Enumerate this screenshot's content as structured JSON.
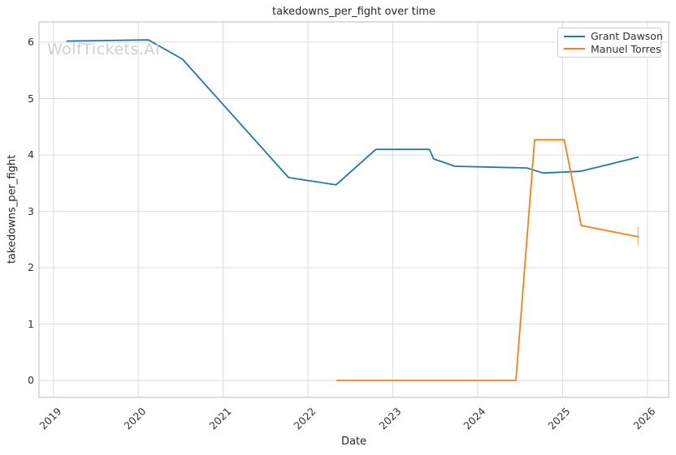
{
  "watermark": {
    "text": "WolfTickets.AI",
    "color": "#d0d0d0"
  },
  "style": {
    "background": "#ffffff",
    "grid_color": "#dcdcdc",
    "spine_color": "#c8c8c8",
    "text_color": "#262626",
    "tick_color": "#333333"
  },
  "chart_data": {
    "type": "line",
    "title": "takedowns_per_fight over time",
    "xlabel": "Date",
    "ylabel": "takedowns_per_fight",
    "grid": true,
    "legend_position": "upper right",
    "x_ticks": [
      "2019",
      "2020",
      "2021",
      "2022",
      "2023",
      "2024",
      "2025",
      "2026"
    ],
    "x_tick_values": [
      2019,
      2020,
      2021,
      2022,
      2023,
      2024,
      2025,
      2026
    ],
    "y_ticks": [
      "0",
      "1",
      "2",
      "3",
      "4",
      "5",
      "6"
    ],
    "y_tick_values": [
      0,
      1,
      2,
      3,
      4,
      5,
      6
    ],
    "xlim": [
      2018.83,
      2026.25
    ],
    "ylim": [
      -0.3,
      6.36
    ],
    "series": [
      {
        "name": "Grant Dawson",
        "color": "#1f77b4",
        "points": [
          [
            2019.16,
            6.02
          ],
          [
            2020.12,
            6.04
          ],
          [
            2020.52,
            5.7
          ],
          [
            2021.77,
            3.6
          ],
          [
            2022.33,
            3.47
          ],
          [
            2022.8,
            4.1
          ],
          [
            2023.43,
            4.1
          ],
          [
            2023.48,
            3.93
          ],
          [
            2023.73,
            3.8
          ],
          [
            2024.58,
            3.77
          ],
          [
            2024.77,
            3.68
          ],
          [
            2025.21,
            3.71
          ],
          [
            2025.89,
            3.96
          ]
        ]
      },
      {
        "name": "Manuel Torres",
        "color": "#ff7f0e",
        "points": [
          [
            2022.34,
            0.0
          ],
          [
            2024.45,
            0.0
          ],
          [
            2024.67,
            4.27
          ],
          [
            2025.02,
            4.27
          ],
          [
            2025.22,
            2.75
          ],
          [
            2025.89,
            2.55
          ]
        ],
        "error_bar": {
          "x": 2025.89,
          "y_low": 2.4,
          "y_high": 2.72,
          "color": "#ffbb78"
        }
      }
    ]
  }
}
